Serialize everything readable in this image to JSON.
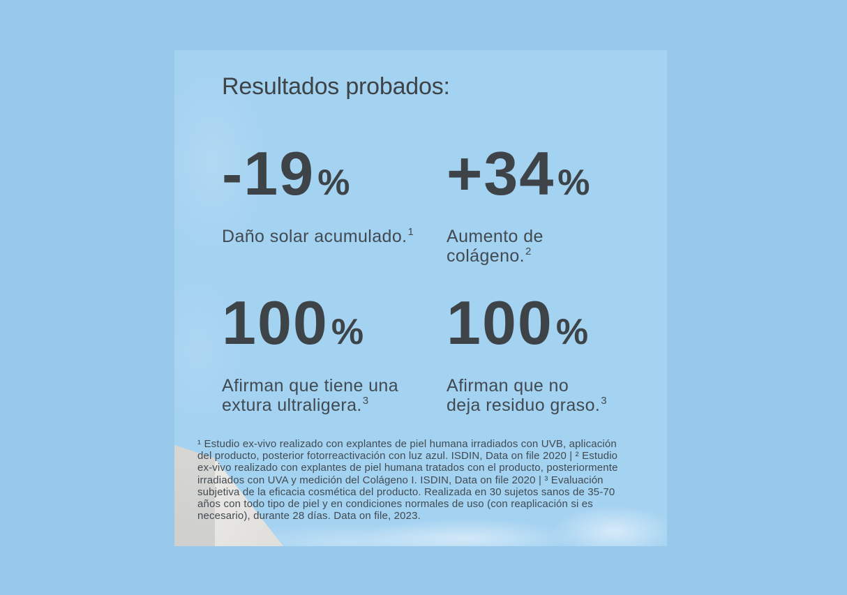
{
  "colors": {
    "bg-outer": "#98c9eb",
    "bg-panel": "#a4d2f1",
    "ink": "#3d4347",
    "ink-soft": "#414a51",
    "block-left": "#d9dad7",
    "block-right": "#eeede9"
  },
  "section": {
    "title": "Resultados probados:"
  },
  "stats": [
    {
      "value": "-19",
      "unit": "%",
      "label_lines": [
        "Daño solar acumulado."
      ],
      "footnote_ref": "1"
    },
    {
      "value": "+34",
      "unit": "%",
      "label_lines": [
        "Aumento de",
        "colágeno."
      ],
      "footnote_ref": "2"
    },
    {
      "value": "100",
      "unit": "%",
      "label_lines": [
        "Afirman que tiene una",
        "extura ultraligera."
      ],
      "footnote_ref": "3"
    },
    {
      "value": "100",
      "unit": "%",
      "label_lines": [
        "Afirman que no",
        "deja residuo graso."
      ],
      "footnote_ref": "3"
    }
  ],
  "footnotes": {
    "lines": [
      "¹ Estudio ex-vivo realizado con explantes de piel humana irradiados con UVB, aplicación",
      "del producto, posterior fotorreactivación con luz azul. ISDIN, Data on file 2020 | ² Estudio",
      "ex-vivo realizado con explantes de piel humana tratados con el producto, posteriormente",
      "irradiados con UVA y medición del Colágeno I. ISDIN, Data on file 2020 | ³ Evaluación",
      "subjetiva de la eficacia cosmética del producto. Realizada en 30 sujetos sanos de 35-70",
      "años con todo tipo de piel y en condiciones normales de uso (con reaplicación si es",
      "necesario), durante 28 días. Data on file, 2023."
    ]
  }
}
